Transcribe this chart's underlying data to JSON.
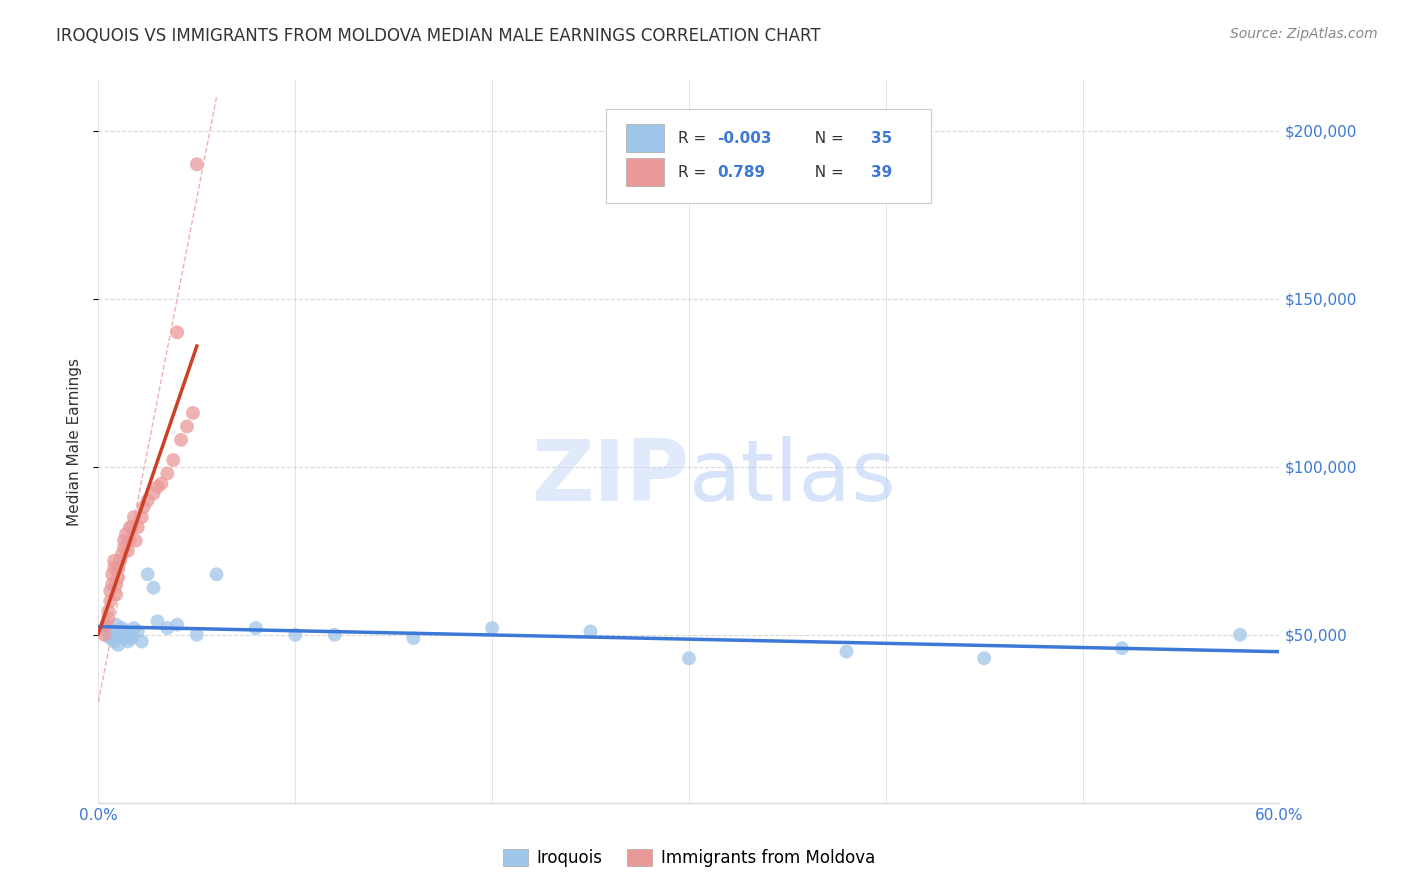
{
  "title": "IROQUOIS VS IMMIGRANTS FROM MOLDOVA MEDIAN MALE EARNINGS CORRELATION CHART",
  "source": "Source: ZipAtlas.com",
  "ylabel": "Median Male Earnings",
  "watermark_zip": "ZIP",
  "watermark_atlas": "atlas",
  "xlim": [
    0.0,
    0.6
  ],
  "ylim": [
    0,
    215000
  ],
  "yticks": [
    50000,
    100000,
    150000,
    200000
  ],
  "ytick_labels": [
    "$50,000",
    "$100,000",
    "$150,000",
    "$200,000"
  ],
  "blue_color": "#9fc5e8",
  "pink_color": "#ea9999",
  "blue_line_color": "#3c78d8",
  "pink_line_color": "#cc4125",
  "pink_dash_color": "#e06666",
  "grid_color": "#d9d9d9",
  "iroquois_x": [
    0.004,
    0.005,
    0.006,
    0.007,
    0.008,
    0.009,
    0.01,
    0.011,
    0.012,
    0.013,
    0.014,
    0.015,
    0.016,
    0.017,
    0.018,
    0.02,
    0.022,
    0.025,
    0.028,
    0.03,
    0.035,
    0.04,
    0.05,
    0.06,
    0.08,
    0.1,
    0.12,
    0.16,
    0.2,
    0.25,
    0.3,
    0.38,
    0.45,
    0.52,
    0.58
  ],
  "iroquois_y": [
    52000,
    50000,
    49000,
    51000,
    48000,
    53000,
    47000,
    50000,
    52000,
    49000,
    51000,
    48000,
    50000,
    49000,
    52000,
    51000,
    48000,
    68000,
    64000,
    54000,
    52000,
    53000,
    50000,
    68000,
    52000,
    50000,
    50000,
    49000,
    52000,
    51000,
    43000,
    45000,
    43000,
    46000,
    50000
  ],
  "moldova_x": [
    0.003,
    0.004,
    0.005,
    0.005,
    0.006,
    0.006,
    0.007,
    0.007,
    0.008,
    0.008,
    0.009,
    0.009,
    0.01,
    0.01,
    0.011,
    0.012,
    0.013,
    0.013,
    0.014,
    0.015,
    0.016,
    0.016,
    0.017,
    0.018,
    0.019,
    0.02,
    0.022,
    0.023,
    0.025,
    0.028,
    0.03,
    0.032,
    0.035,
    0.038,
    0.04,
    0.042,
    0.045,
    0.048,
    0.05
  ],
  "moldova_y": [
    50000,
    53000,
    55000,
    57000,
    60000,
    63000,
    65000,
    68000,
    70000,
    72000,
    62000,
    65000,
    67000,
    70000,
    72000,
    74000,
    76000,
    78000,
    80000,
    75000,
    78000,
    82000,
    82000,
    85000,
    78000,
    82000,
    85000,
    88000,
    90000,
    92000,
    94000,
    95000,
    98000,
    102000,
    140000,
    108000,
    112000,
    116000,
    190000
  ]
}
